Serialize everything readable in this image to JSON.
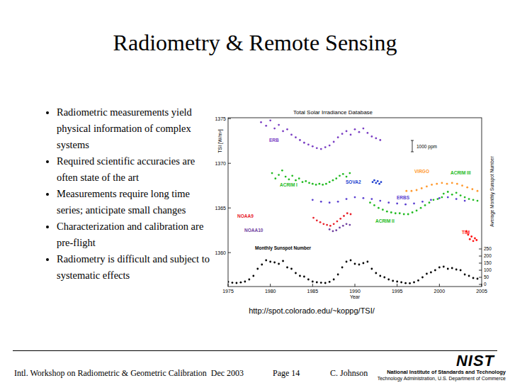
{
  "title": "Radiometry & Remote Sensing",
  "bullets": [
    "Radiometric measurements yield physical information of complex systems",
    "Required scientific accuracies are often state of the art",
    "Measurements require long time series; anticipate small changes",
    "Characterization and calibration are pre-flight",
    "Radiometry is difficult and subject to systematic effects"
  ],
  "chart_data": {
    "type": "scatter",
    "title": "Total Solar Irradiance Database",
    "x_label": "Year",
    "y_label": "TSI [W/m²]",
    "y2_label": "Average Monthly Sunspot Number",
    "annotations": [
      "1000 ppm"
    ],
    "marker": "circle",
    "grid": false,
    "xlim": [
      1975,
      2005
    ],
    "xticks": [
      1975,
      1980,
      1985,
      1990,
      1995,
      2000,
      2005
    ],
    "ylim": [
      1356.2,
      1375.1
    ],
    "yticks": [
      1360,
      1365,
      1370,
      1375
    ],
    "y2lim": [
      -15,
      1175
    ],
    "y2ticks": [
      0,
      50,
      100,
      150,
      200,
      250
    ],
    "series": [
      {
        "name": "ERB",
        "color": "#7b3fc4",
        "x": [
          1978.9,
          1979.5,
          1980,
          1980.5,
          1981,
          1981.5,
          1982,
          1982.5,
          1983,
          1983.5,
          1984,
          1984.5,
          1985,
          1985.5,
          1986,
          1986.5,
          1987,
          1987.5,
          1988,
          1988.5,
          1989,
          1989.5,
          1990,
          1990.5,
          1991,
          1991.5,
          1992,
          1992.5,
          1993
        ],
        "values": [
          1374.6,
          1374.2,
          1374.8,
          1373.9,
          1374.3,
          1373.6,
          1373.8,
          1373.2,
          1372.9,
          1372.6,
          1372.3,
          1372.1,
          1371.9,
          1371.7,
          1371.6,
          1371.8,
          1372.0,
          1372.4,
          1372.9,
          1373.3,
          1373.6,
          1373.2,
          1373.8,
          1373.5,
          1373.9,
          1373.4,
          1373.0,
          1372.8,
          1372.6
        ]
      },
      {
        "name": "ACRIM I",
        "color": "#22bb22",
        "x": [
          1980.2,
          1980.6,
          1981,
          1981.4,
          1981.8,
          1982.2,
          1982.6,
          1983,
          1983.4,
          1983.8,
          1984.2,
          1984.6,
          1985,
          1985.4,
          1985.8,
          1986.2,
          1986.6,
          1987,
          1987.4,
          1987.8,
          1988.2,
          1988.6,
          1989,
          1989.4
        ],
        "values": [
          1368.9,
          1368.3,
          1368.7,
          1369.2,
          1368.5,
          1368.2,
          1368.6,
          1368.1,
          1368.3,
          1367.9,
          1368.0,
          1367.8,
          1367.7,
          1367.6,
          1367.7,
          1367.6,
          1367.7,
          1367.9,
          1368.1,
          1368.3,
          1368.6,
          1368.8,
          1368.5,
          1368.9
        ]
      },
      {
        "name": "ACRIM II",
        "color": "#22bb22",
        "x": [
          1991.8,
          1992.3,
          1992.8,
          1993.3,
          1993.8,
          1994.3,
          1994.8,
          1995.3,
          1995.8,
          1996.3,
          1996.8,
          1997.3,
          1997.8,
          1998.3,
          1998.8,
          1999.3,
          1999.8,
          2000.3
        ],
        "values": [
          1365.6,
          1365.3,
          1365.0,
          1364.8,
          1364.6,
          1364.5,
          1364.4,
          1364.4,
          1364.3,
          1364.3,
          1364.5,
          1364.7,
          1365.0,
          1365.3,
          1365.6,
          1365.9,
          1366.0,
          1366.2
        ]
      },
      {
        "name": "ACRIM III",
        "color": "#22bb22",
        "x": [
          2000.5,
          2001,
          2001.5,
          2002,
          2002.5,
          2003,
          2003.5,
          2004,
          2004.5
        ],
        "values": [
          1366.6,
          1366.8,
          1366.5,
          1366.7,
          1366.4,
          1366.2,
          1366.0,
          1365.9,
          1365.8
        ]
      },
      {
        "name": "VIRGO",
        "color": "#ff9a30",
        "x": [
          1996.1,
          1996.7,
          1997.3,
          1997.9,
          1998.5,
          1999.1,
          1999.7,
          2000.3,
          2000.9,
          2001.5,
          2002.1,
          2002.7,
          2003.3,
          2003.9,
          2004.5
        ],
        "values": [
          1366.9,
          1366.9,
          1367.0,
          1367.2,
          1367.4,
          1367.6,
          1367.7,
          1367.8,
          1367.7,
          1367.8,
          1367.7,
          1367.5,
          1367.3,
          1367.1,
          1366.9
        ]
      },
      {
        "name": "ERBS",
        "color": "#5a3fd0",
        "x": [
          1985,
          1986,
          1987,
          1988,
          1989,
          1990,
          1991,
          1992,
          1993,
          1994,
          1995,
          1996,
          1997,
          1998,
          1999,
          2000,
          2001,
          2002,
          2003
        ],
        "values": [
          1365.9,
          1365.7,
          1365.6,
          1365.7,
          1366.0,
          1366.2,
          1366.1,
          1366.0,
          1365.8,
          1365.6,
          1365.5,
          1365.4,
          1365.5,
          1365.7,
          1365.9,
          1366.1,
          1366.2,
          1366.0,
          1365.8
        ]
      },
      {
        "name": "SOVA2",
        "color": "#2040d0",
        "x": [
          1992.1,
          1992.3,
          1992.5,
          1992.7,
          1992.9,
          1993.1
        ],
        "values": [
          1367.9,
          1368.1,
          1367.8,
          1368.0,
          1367.7,
          1367.9
        ]
      },
      {
        "name": "NOAA9",
        "color": "#e8202a",
        "x": [
          1985.1,
          1985.5,
          1985.9,
          1986.3,
          1986.7,
          1987.1,
          1987.5,
          1987.9,
          1988.3,
          1988.7,
          1989.1,
          1989.5
        ],
        "values": [
          1363.9,
          1363.6,
          1363.4,
          1363.2,
          1363.1,
          1363.0,
          1363.2,
          1363.5,
          1363.8,
          1364.1,
          1364.4,
          1364.3
        ]
      },
      {
        "name": "NOAA10",
        "color": "#7040a0",
        "x": [
          1987,
          1987.4,
          1987.8,
          1988.2,
          1988.6,
          1989,
          1989.4
        ],
        "values": [
          1362.6,
          1362.4,
          1362.5,
          1362.8,
          1363.0,
          1363.2,
          1363.1
        ]
      },
      {
        "name": "TIM",
        "color": "#ff1010",
        "x": [
          2003.2,
          2003.4,
          2003.6,
          2003.8,
          2004,
          2004.2,
          2004.4
        ],
        "values": [
          1362.4,
          1362.0,
          1361.5,
          1361.8,
          1361.3,
          1361.6,
          1361.4
        ]
      },
      {
        "name": "Monthly Sunspot Number",
        "color": "#000000",
        "axis": "y2",
        "x": [
          1975,
          1975.5,
          1976,
          1976.5,
          1977,
          1977.5,
          1978,
          1978.5,
          1979,
          1979.5,
          1980,
          1980.5,
          1981,
          1981.5,
          1982,
          1982.5,
          1983,
          1983.5,
          1984,
          1984.5,
          1985,
          1985.5,
          1986,
          1986.5,
          1987,
          1987.5,
          1988,
          1988.5,
          1989,
          1989.5,
          1990,
          1990.5,
          1991,
          1991.5,
          1992,
          1992.5,
          1993,
          1993.5,
          1994,
          1994.5,
          1995,
          1995.5,
          1996,
          1996.5,
          1997,
          1997.5,
          1998,
          1998.5,
          1999,
          1999.5,
          2000,
          2000.5,
          2001,
          2001.5,
          2002,
          2002.5,
          2003,
          2003.5,
          2004,
          2004.5
        ],
        "values": [
          18,
          12,
          10,
          14,
          20,
          35,
          60,
          110,
          140,
          170,
          160,
          155,
          145,
          165,
          120,
          110,
          80,
          60,
          55,
          35,
          20,
          15,
          12,
          10,
          18,
          35,
          70,
          120,
          160,
          170,
          145,
          140,
          150,
          160,
          110,
          80,
          60,
          50,
          35,
          25,
          20,
          15,
          9,
          8,
          15,
          28,
          50,
          75,
          85,
          100,
          120,
          125,
          110,
          115,
          105,
          100,
          70,
          60,
          45,
          40
        ]
      }
    ]
  },
  "source_url": "http://spot.colorado.edu/~koppg/TSI/",
  "footer": {
    "event": "Intl. Workshop on Radiometric & Geometric Calibration  Dec 2003",
    "page": "Page 14",
    "author": "C. Johnson",
    "logo": "NIST",
    "organization": "National Institute of Standards and Technology",
    "department": "Technology Administration, U.S. Department of Commerce"
  }
}
